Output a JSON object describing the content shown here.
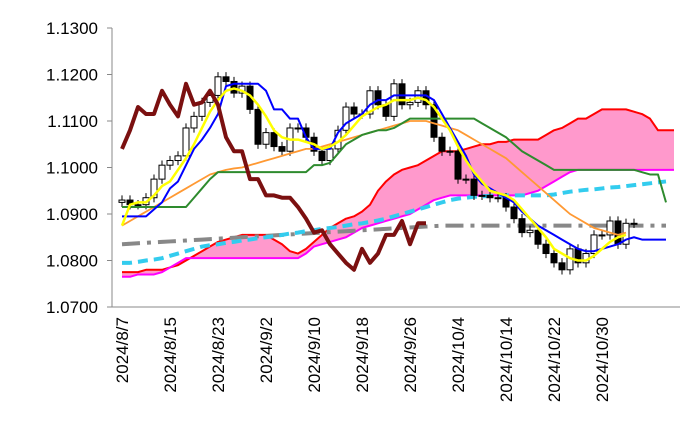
{
  "chart_data": {
    "type": "ichimoku",
    "ylim": [
      1.07,
      1.13
    ],
    "yticks": [
      {
        "value": 1.07,
        "label": "1.0700"
      },
      {
        "value": 1.08,
        "label": "1.0800"
      },
      {
        "value": 1.09,
        "label": "1.0900"
      },
      {
        "value": 1.1,
        "label": "1.1000"
      },
      {
        "value": 1.11,
        "label": "1.1100"
      },
      {
        "value": 1.12,
        "label": "1.1200"
      },
      {
        "value": 1.13,
        "label": "1.1300"
      }
    ],
    "categories": [
      "2024/8/7",
      null,
      null,
      null,
      null,
      null,
      "2024/8/15",
      null,
      null,
      null,
      null,
      null,
      "2024/8/23",
      null,
      null,
      null,
      null,
      null,
      "2024/9/2",
      null,
      null,
      null,
      null,
      null,
      "2024/9/10",
      null,
      null,
      null,
      null,
      null,
      "2024/9/18",
      null,
      null,
      null,
      null,
      null,
      "2024/9/26",
      null,
      null,
      null,
      null,
      null,
      "2024/10/4",
      null,
      null,
      null,
      null,
      null,
      "2024/10/14",
      null,
      null,
      null,
      null,
      null,
      "2024/10/22",
      null,
      null,
      null,
      null,
      null,
      "2024/10/30",
      null,
      null,
      null,
      null,
      null,
      null,
      null,
      null,
      null
    ],
    "candles": {
      "up_color": "#ffffff",
      "down_color": "#000000",
      "open": [
        1.0925,
        1.093,
        1.092,
        1.092,
        1.0935,
        1.0975,
        1.1005,
        1.1015,
        1.1025,
        1.1085,
        1.111,
        1.114,
        1.1155,
        1.1195,
        1.1185,
        1.116,
        1.1175,
        1.1125,
        1.105,
        1.1075,
        1.1045,
        1.1035,
        1.1085,
        1.1085,
        1.1065,
        1.1035,
        1.1015,
        1.104,
        1.108,
        1.113,
        1.1115,
        1.1115,
        1.1165,
        1.1135,
        1.111,
        1.118,
        1.1135,
        1.114,
        1.1165,
        1.1135,
        1.1065,
        1.1035,
        1.1035,
        1.0975,
        1.0975,
        1.094,
        1.094,
        1.0935,
        1.0935,
        1.0915,
        1.089,
        1.086,
        1.0865,
        1.0835,
        1.0815,
        1.0795,
        1.078,
        1.0825,
        1.0795,
        1.0815,
        1.0855,
        1.0855,
        1.0885,
        1.0835,
        1.088
      ],
      "high": [
        1.094,
        1.094,
        1.093,
        1.0945,
        1.0985,
        1.1015,
        1.1025,
        1.1035,
        1.1095,
        1.112,
        1.115,
        1.1165,
        1.1205,
        1.1205,
        1.1195,
        1.1185,
        1.1185,
        1.1135,
        1.1085,
        1.1085,
        1.1055,
        1.1095,
        1.1095,
        1.1095,
        1.1075,
        1.1045,
        1.105,
        1.109,
        1.114,
        1.114,
        1.1125,
        1.1175,
        1.1175,
        1.1145,
        1.119,
        1.119,
        1.115,
        1.1175,
        1.1175,
        1.1145,
        1.1075,
        1.1045,
        1.1045,
        1.0985,
        1.0985,
        1.095,
        1.095,
        1.0945,
        1.0945,
        1.0925,
        1.09,
        1.0875,
        1.0875,
        1.0845,
        1.0825,
        1.0805,
        1.0835,
        1.0835,
        1.0825,
        1.0865,
        1.0865,
        1.0895,
        1.0895,
        1.089,
        1.089
      ],
      "low": [
        1.0915,
        1.091,
        1.091,
        1.091,
        1.0925,
        1.0965,
        1.0995,
        1.1005,
        1.1015,
        1.1075,
        1.11,
        1.113,
        1.1145,
        1.1175,
        1.115,
        1.115,
        1.1115,
        1.104,
        1.104,
        1.1035,
        1.1025,
        1.1025,
        1.1075,
        1.1055,
        1.1025,
        1.1005,
        1.1005,
        1.103,
        1.107,
        1.1105,
        1.1105,
        1.1105,
        1.1125,
        1.11,
        1.11,
        1.1125,
        1.1125,
        1.113,
        1.1125,
        1.1055,
        1.1025,
        1.1025,
        1.0965,
        1.0965,
        1.093,
        1.093,
        1.0925,
        1.0925,
        1.0905,
        1.088,
        1.085,
        1.085,
        1.0825,
        1.0805,
        1.0785,
        1.077,
        1.077,
        1.0785,
        1.0785,
        1.0805,
        1.0845,
        1.0845,
        1.0825,
        1.0825,
        1.087
      ],
      "close": [
        1.093,
        1.092,
        1.092,
        1.0935,
        1.0975,
        1.1005,
        1.1015,
        1.1025,
        1.1085,
        1.111,
        1.114,
        1.1155,
        1.1195,
        1.1185,
        1.116,
        1.1175,
        1.1125,
        1.105,
        1.1075,
        1.1045,
        1.1035,
        1.1085,
        1.1085,
        1.1065,
        1.1035,
        1.1015,
        1.104,
        1.108,
        1.113,
        1.1115,
        1.1115,
        1.1165,
        1.1135,
        1.111,
        1.118,
        1.1135,
        1.114,
        1.1165,
        1.1135,
        1.1065,
        1.1035,
        1.1035,
        1.0975,
        1.0975,
        1.094,
        1.094,
        1.0935,
        1.0935,
        1.0915,
        1.089,
        1.086,
        1.0865,
        1.0835,
        1.0815,
        1.0795,
        1.078,
        1.0825,
        1.0795,
        1.0815,
        1.0855,
        1.0855,
        1.0885,
        1.0835,
        1.088,
        1.088
      ]
    },
    "cloud": {
      "color": "#ff99cc",
      "upper": {
        "color": "#ff0000",
        "width": 2,
        "values": [
          1.0775,
          1.0775,
          1.0775,
          1.078,
          1.078,
          1.078,
          1.0785,
          1.079,
          1.08,
          1.081,
          1.082,
          1.083,
          1.084,
          1.0845,
          1.085,
          1.0855,
          1.0855,
          1.0855,
          1.0855,
          1.0845,
          1.0835,
          1.082,
          1.0815,
          1.0825,
          1.084,
          1.0855,
          1.087,
          1.088,
          1.089,
          1.0895,
          1.0905,
          1.092,
          1.095,
          1.097,
          1.0985,
          1.0995,
          1.1,
          1.1005,
          1.1015,
          1.1025,
          1.1035,
          1.1035,
          1.1035,
          1.104,
          1.1045,
          1.105,
          1.105,
          1.1055,
          1.1055,
          1.106,
          1.106,
          1.106,
          1.106,
          1.107,
          1.108,
          1.1085,
          1.1095,
          1.1105,
          1.1105,
          1.1115,
          1.1125,
          1.1125,
          1.1125,
          1.1125,
          1.112,
          1.1115,
          1.1105,
          1.108,
          1.108,
          1.108
        ]
      },
      "lower": {
        "color": "#ff00ff",
        "width": 2,
        "values": [
          1.0765,
          1.0765,
          1.077,
          1.077,
          1.077,
          1.0775,
          1.0785,
          1.0795,
          1.0805,
          1.0805,
          1.0805,
          1.0805,
          1.0805,
          1.0805,
          1.0805,
          1.0805,
          1.0805,
          1.0805,
          1.0805,
          1.0805,
          1.0805,
          1.0805,
          1.0805,
          1.0815,
          1.083,
          1.0835,
          1.084,
          1.0845,
          1.085,
          1.086,
          1.087,
          1.0875,
          1.088,
          1.0885,
          1.089,
          1.0895,
          1.09,
          1.091,
          1.092,
          1.093,
          1.0935,
          1.094,
          1.094,
          1.094,
          1.094,
          1.094,
          1.094,
          1.094,
          1.094,
          1.094,
          1.094,
          1.0945,
          1.095,
          1.096,
          1.097,
          1.098,
          1.099,
          1.0995,
          1.0995,
          1.0995,
          1.0995,
          1.0995,
          1.0995,
          1.0995,
          1.0995,
          1.0995,
          1.0995,
          1.0995,
          1.0995,
          1.0995
        ]
      }
    },
    "lines": [
      {
        "color": "#888888",
        "width": 4,
        "dash": "18 7 4 7",
        "values": [
          1.0835,
          1.0836,
          1.0837,
          1.0838,
          1.0839,
          1.084,
          1.0841,
          1.0842,
          1.0843,
          1.0844,
          1.0845,
          1.0846,
          1.0847,
          1.0848,
          1.0849,
          1.085,
          1.0851,
          1.0852,
          1.0853,
          1.0854,
          1.0855,
          1.0856,
          1.0857,
          1.0858,
          1.0859,
          1.086,
          1.0861,
          1.0862,
          1.0863,
          1.0864,
          1.0865,
          1.0866,
          1.0867,
          1.0868,
          1.0869,
          1.087,
          1.0871,
          1.0872,
          1.0873,
          1.0874,
          1.0875,
          1.0875,
          1.0875,
          1.0875,
          1.0875,
          1.0875,
          1.0875,
          1.0875,
          1.0875,
          1.0875,
          1.0875,
          1.0875,
          1.0875,
          1.0875,
          1.0875,
          1.0875,
          1.0875,
          1.0875,
          1.0875,
          1.0875,
          1.0875,
          1.0875,
          1.0875,
          1.0875,
          1.0875,
          1.0875,
          1.0875,
          1.0875,
          1.0875,
          null
        ]
      },
      {
        "color": "#33ccee",
        "width": 4,
        "dash": "10 6",
        "values": [
          1.0795,
          1.0795,
          1.0797,
          1.08,
          1.0802,
          1.0805,
          1.081,
          1.0815,
          1.082,
          1.0825,
          1.083,
          1.0833,
          1.0835,
          1.0838,
          1.084,
          1.0843,
          1.0845,
          1.0848,
          1.085,
          1.0852,
          1.0855,
          1.0858,
          1.086,
          1.0863,
          1.0865,
          1.0868,
          1.087,
          1.0872,
          1.0875,
          1.0878,
          1.088,
          1.0883,
          1.0886,
          1.089,
          1.0895,
          1.09,
          1.0905,
          1.091,
          1.0915,
          1.092,
          1.0925,
          1.093,
          1.0933,
          1.0935,
          1.0937,
          1.0938,
          1.0939,
          1.094,
          1.094,
          1.094,
          1.094,
          1.094,
          1.094,
          1.094,
          1.0942,
          1.0945,
          1.0948,
          1.095,
          1.0952,
          1.0953,
          1.0955,
          1.0957,
          1.0958,
          1.096,
          1.0962,
          1.0964,
          1.0966,
          1.0968,
          1.097,
          null
        ]
      },
      {
        "color": "#ff9933",
        "width": 1.8,
        "values": [
          1.0875,
          1.0885,
          1.0895,
          1.0905,
          1.0915,
          1.0925,
          1.0935,
          1.0945,
          1.0955,
          1.0965,
          1.0975,
          1.0985,
          1.099,
          1.0995,
          1.0998,
          1.1,
          1.1005,
          1.101,
          1.1015,
          1.102,
          1.1025,
          1.103,
          1.1035,
          1.104,
          1.104,
          1.1045,
          1.105,
          1.1055,
          1.106,
          1.1065,
          1.107,
          1.1075,
          1.108,
          1.1085,
          1.109,
          1.1095,
          1.11,
          1.11,
          1.11,
          1.1095,
          1.109,
          1.1085,
          1.108,
          1.107,
          1.106,
          1.105,
          1.104,
          1.103,
          1.102,
          1.1005,
          1.099,
          1.0975,
          1.096,
          1.0945,
          1.093,
          1.0915,
          1.09,
          1.089,
          1.088,
          1.087,
          1.0865,
          1.086,
          1.0855,
          1.086,
          null,
          null,
          null,
          null,
          null,
          null
        ]
      },
      {
        "color": "#2e8b2e",
        "width": 2,
        "values": [
          1.0915,
          1.0915,
          1.0915,
          1.0915,
          1.0915,
          1.0915,
          1.0915,
          1.0915,
          1.0915,
          1.0935,
          1.0955,
          1.0975,
          1.099,
          1.099,
          1.099,
          1.099,
          1.099,
          1.099,
          1.099,
          1.099,
          1.099,
          1.099,
          1.099,
          1.099,
          1.1005,
          1.1005,
          1.101,
          1.103,
          1.105,
          1.106,
          1.107,
          1.1075,
          1.108,
          1.108,
          1.1085,
          1.1095,
          1.1105,
          1.1105,
          1.1105,
          1.1105,
          1.1105,
          1.1105,
          1.1105,
          1.1105,
          1.1105,
          1.1095,
          1.1085,
          1.1075,
          1.1065,
          1.105,
          1.1035,
          1.1025,
          1.1015,
          1.1005,
          1.0995,
          1.0995,
          1.0995,
          1.0995,
          1.0995,
          1.0995,
          1.0995,
          1.0995,
          1.0995,
          1.0995,
          1.0995,
          1.099,
          1.0985,
          1.0985,
          1.0925,
          null
        ]
      },
      {
        "color": "#0000ff",
        "width": 2,
        "values": [
          1.0895,
          1.0895,
          1.0895,
          1.0895,
          1.091,
          1.0925,
          1.0955,
          1.097,
          1.1005,
          1.104,
          1.106,
          1.1085,
          1.1115,
          1.1175,
          1.118,
          1.118,
          1.118,
          1.118,
          1.1165,
          1.1125,
          1.1125,
          1.1105,
          1.1105,
          1.1065,
          1.104,
          1.104,
          1.104,
          1.1075,
          1.1095,
          1.1105,
          1.1115,
          1.1135,
          1.1145,
          1.1145,
          1.1155,
          1.1155,
          1.1155,
          1.1155,
          1.1155,
          1.1145,
          1.1115,
          1.1085,
          1.1055,
          1.1025,
          1.0985,
          1.0965,
          1.0955,
          1.0945,
          1.0935,
          1.0925,
          1.0905,
          1.089,
          1.0875,
          1.0865,
          1.0855,
          1.0845,
          1.0835,
          1.0825,
          1.082,
          1.082,
          1.0825,
          1.083,
          1.0835,
          1.0845,
          1.085,
          1.0845,
          1.0845,
          1.0845,
          1.0845,
          null
        ]
      },
      {
        "color": "#ffff00",
        "width": 2.5,
        "values": [
          1.0875,
          1.092,
          1.0925,
          1.0925,
          1.094,
          1.096,
          1.097,
          1.0995,
          1.102,
          1.105,
          1.1085,
          1.112,
          1.1145,
          1.1165,
          1.117,
          1.1165,
          1.1155,
          1.1135,
          1.111,
          1.108,
          1.1065,
          1.106,
          1.106,
          1.1055,
          1.105,
          1.104,
          1.1045,
          1.1055,
          1.107,
          1.109,
          1.111,
          1.112,
          1.113,
          1.1135,
          1.1145,
          1.1145,
          1.1145,
          1.115,
          1.1145,
          1.113,
          1.1105,
          1.108,
          1.1045,
          1.1015,
          1.099,
          1.097,
          1.095,
          1.0945,
          1.094,
          1.093,
          1.091,
          1.089,
          1.087,
          1.085,
          1.0825,
          1.0815,
          1.0805,
          1.08,
          1.08,
          1.081,
          1.0825,
          1.084,
          1.085,
          1.0855,
          null,
          null,
          null,
          null,
          null,
          null
        ]
      },
      {
        "color": "#7b1010",
        "width": 4,
        "values": [
          1.104,
          1.108,
          1.113,
          1.1115,
          1.1115,
          1.1165,
          1.1135,
          1.111,
          1.118,
          1.1135,
          1.114,
          1.1165,
          1.1135,
          1.1065,
          1.1035,
          1.1035,
          1.0975,
          1.0975,
          1.094,
          1.094,
          1.0935,
          1.0935,
          1.0915,
          1.089,
          1.086,
          1.0865,
          1.0835,
          1.0815,
          1.0795,
          1.078,
          1.0825,
          1.0795,
          1.0815,
          1.0855,
          1.0855,
          1.0885,
          1.0835,
          1.088,
          1.088,
          null,
          null,
          null,
          null,
          null,
          null,
          null,
          null,
          null,
          null,
          null,
          null,
          null,
          null,
          null,
          null,
          null,
          null,
          null,
          null,
          null,
          null,
          null,
          null,
          null,
          null,
          null,
          null,
          null,
          null,
          null
        ]
      }
    ]
  }
}
